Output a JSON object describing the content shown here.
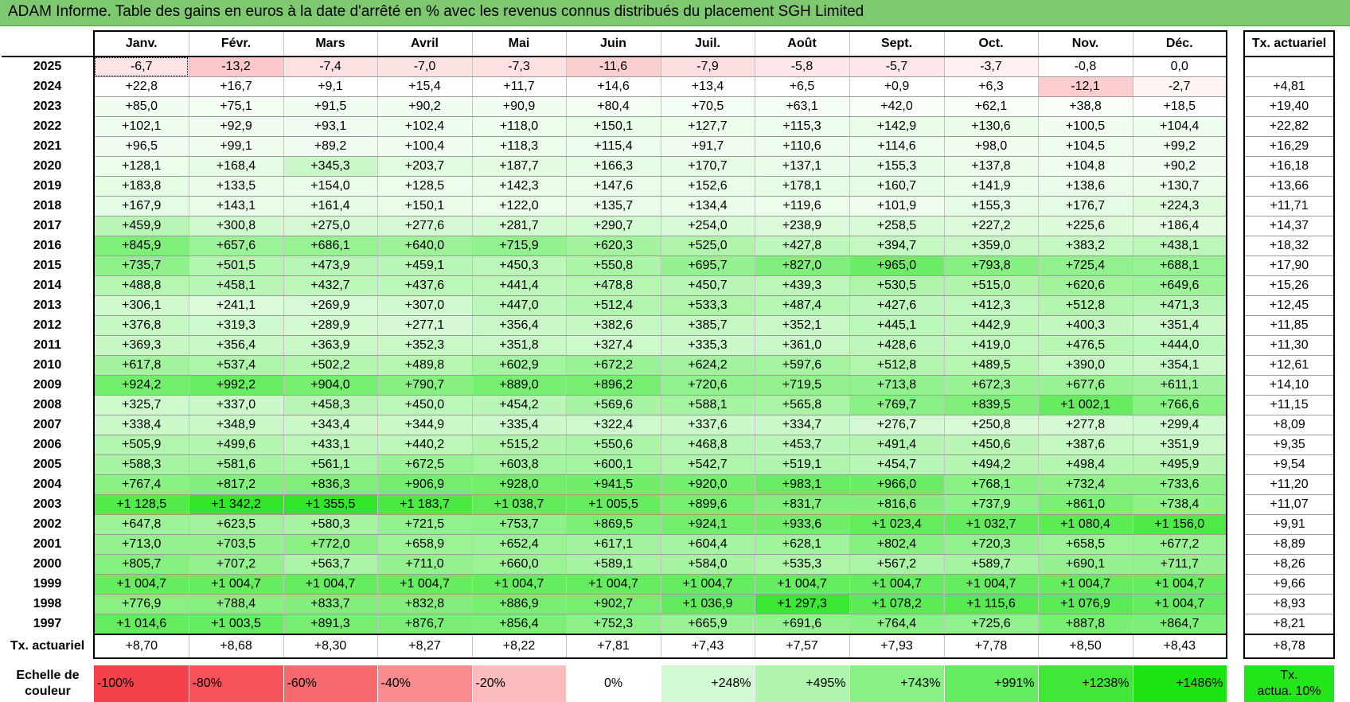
{
  "title": "ADAM Informe. Table des gains en euros à la date d'arrêté en % avec les revenus connus distribués du placement SGH Limited",
  "months": [
    "Janv.",
    "Févr.",
    "Mars",
    "Avril",
    "Mai",
    "Juin",
    "Juil.",
    "Août",
    "Sept.",
    "Oct.",
    "Nov.",
    "Déc."
  ],
  "rate_header": "Tx. actuariel",
  "rows": [
    {
      "year": "2025",
      "values": [
        "-6,7",
        "-13,2",
        "-7,4",
        "-7,0",
        "-7,3",
        "-11,6",
        "-7,9",
        "-5,8",
        "-5,7",
        "-3,7",
        "-0,8",
        "0,0"
      ],
      "rate": ""
    },
    {
      "year": "2024",
      "values": [
        "+22,8",
        "+16,7",
        "+9,1",
        "+15,4",
        "+11,7",
        "+14,6",
        "+13,4",
        "+6,5",
        "+0,9",
        "+6,3",
        "-12,1",
        "-2,7"
      ],
      "rate": "+4,81"
    },
    {
      "year": "2023",
      "values": [
        "+85,0",
        "+75,1",
        "+91,5",
        "+90,2",
        "+90,9",
        "+80,4",
        "+70,5",
        "+63,1",
        "+42,0",
        "+62,1",
        "+38,8",
        "+18,5"
      ],
      "rate": "+19,40"
    },
    {
      "year": "2022",
      "values": [
        "+102,1",
        "+92,9",
        "+93,1",
        "+102,4",
        "+118,0",
        "+150,1",
        "+127,7",
        "+115,3",
        "+142,9",
        "+130,6",
        "+100,5",
        "+104,4"
      ],
      "rate": "+22,82"
    },
    {
      "year": "2021",
      "values": [
        "+96,5",
        "+99,1",
        "+89,2",
        "+100,4",
        "+118,3",
        "+115,4",
        "+91,7",
        "+110,6",
        "+114,6",
        "+98,0",
        "+104,5",
        "+99,2"
      ],
      "rate": "+16,29"
    },
    {
      "year": "2020",
      "values": [
        "+128,1",
        "+168,4",
        "+345,3",
        "+203,7",
        "+187,7",
        "+166,3",
        "+170,7",
        "+137,1",
        "+155,3",
        "+137,8",
        "+104,8",
        "+90,2"
      ],
      "rate": "+16,18"
    },
    {
      "year": "2019",
      "values": [
        "+183,8",
        "+133,5",
        "+154,0",
        "+128,5",
        "+142,3",
        "+147,6",
        "+152,6",
        "+178,1",
        "+160,7",
        "+141,9",
        "+138,6",
        "+130,7"
      ],
      "rate": "+13,66"
    },
    {
      "year": "2018",
      "values": [
        "+167,9",
        "+143,1",
        "+161,4",
        "+150,1",
        "+122,0",
        "+135,7",
        "+134,4",
        "+119,6",
        "+101,9",
        "+155,3",
        "+176,7",
        "+224,3"
      ],
      "rate": "+11,71"
    },
    {
      "year": "2017",
      "values": [
        "+459,9",
        "+300,8",
        "+275,0",
        "+277,6",
        "+281,7",
        "+290,7",
        "+254,0",
        "+238,9",
        "+258,5",
        "+227,2",
        "+225,6",
        "+186,4"
      ],
      "rate": "+14,37"
    },
    {
      "year": "2016",
      "values": [
        "+845,9",
        "+657,6",
        "+686,1",
        "+640,0",
        "+715,9",
        "+620,3",
        "+525,0",
        "+427,8",
        "+394,7",
        "+359,0",
        "+383,2",
        "+438,1"
      ],
      "rate": "+18,32"
    },
    {
      "year": "2015",
      "values": [
        "+735,7",
        "+501,5",
        "+473,9",
        "+459,1",
        "+450,3",
        "+550,8",
        "+695,7",
        "+827,0",
        "+965,0",
        "+793,8",
        "+725,4",
        "+688,1"
      ],
      "rate": "+17,90"
    },
    {
      "year": "2014",
      "values": [
        "+488,8",
        "+458,1",
        "+432,7",
        "+437,6",
        "+441,4",
        "+478,8",
        "+450,7",
        "+439,3",
        "+530,5",
        "+515,0",
        "+620,6",
        "+649,6"
      ],
      "rate": "+15,26"
    },
    {
      "year": "2013",
      "values": [
        "+306,1",
        "+241,1",
        "+269,9",
        "+307,0",
        "+447,0",
        "+512,4",
        "+533,3",
        "+487,4",
        "+427,6",
        "+412,3",
        "+512,8",
        "+471,3"
      ],
      "rate": "+12,45"
    },
    {
      "year": "2012",
      "values": [
        "+376,8",
        "+319,3",
        "+289,9",
        "+277,1",
        "+356,4",
        "+382,6",
        "+385,7",
        "+352,1",
        "+445,1",
        "+442,9",
        "+400,3",
        "+351,4"
      ],
      "rate": "+11,85"
    },
    {
      "year": "2011",
      "values": [
        "+369,3",
        "+356,4",
        "+363,9",
        "+352,3",
        "+351,8",
        "+327,4",
        "+335,3",
        "+361,0",
        "+428,6",
        "+419,0",
        "+476,5",
        "+444,0"
      ],
      "rate": "+11,30"
    },
    {
      "year": "2010",
      "values": [
        "+617,8",
        "+537,4",
        "+502,2",
        "+489,8",
        "+602,9",
        "+672,2",
        "+624,2",
        "+597,6",
        "+512,8",
        "+489,5",
        "+390,0",
        "+354,1"
      ],
      "rate": "+12,61"
    },
    {
      "year": "2009",
      "values": [
        "+924,2",
        "+992,2",
        "+904,0",
        "+790,7",
        "+889,0",
        "+896,2",
        "+720,6",
        "+719,5",
        "+713,8",
        "+672,3",
        "+677,6",
        "+611,1"
      ],
      "rate": "+14,10"
    },
    {
      "year": "2008",
      "values": [
        "+325,7",
        "+337,0",
        "+458,3",
        "+450,0",
        "+454,2",
        "+569,6",
        "+588,1",
        "+565,8",
        "+769,7",
        "+839,5",
        "+1 002,1",
        "+766,6"
      ],
      "rate": "+11,15"
    },
    {
      "year": "2007",
      "values": [
        "+338,4",
        "+348,9",
        "+343,4",
        "+344,9",
        "+335,4",
        "+322,4",
        "+337,6",
        "+334,7",
        "+276,7",
        "+250,8",
        "+277,8",
        "+299,4"
      ],
      "rate": "+8,09"
    },
    {
      "year": "2006",
      "values": [
        "+505,9",
        "+499,6",
        "+433,1",
        "+440,2",
        "+515,2",
        "+550,6",
        "+468,8",
        "+453,7",
        "+491,4",
        "+450,6",
        "+387,6",
        "+351,9"
      ],
      "rate": "+9,35"
    },
    {
      "year": "2005",
      "values": [
        "+588,3",
        "+581,6",
        "+561,1",
        "+672,5",
        "+603,8",
        "+600,1",
        "+542,7",
        "+519,1",
        "+454,7",
        "+494,2",
        "+498,4",
        "+495,9"
      ],
      "rate": "+9,54"
    },
    {
      "year": "2004",
      "values": [
        "+767,4",
        "+817,2",
        "+836,3",
        "+906,9",
        "+928,0",
        "+941,5",
        "+920,0",
        "+983,1",
        "+966,0",
        "+768,1",
        "+732,4",
        "+733,6"
      ],
      "rate": "+11,20"
    },
    {
      "year": "2003",
      "values": [
        "+1 128,5",
        "+1 342,2",
        "+1 355,5",
        "+1 183,7",
        "+1 038,7",
        "+1 005,5",
        "+899,6",
        "+831,7",
        "+816,6",
        "+737,9",
        "+861,0",
        "+738,4"
      ],
      "rate": "+11,07"
    },
    {
      "year": "2002",
      "values": [
        "+647,8",
        "+623,5",
        "+580,3",
        "+721,5",
        "+753,7",
        "+869,5",
        "+924,1",
        "+933,6",
        "+1 023,4",
        "+1 032,7",
        "+1 080,4",
        "+1 156,0"
      ],
      "rate": "+9,91"
    },
    {
      "year": "2001",
      "values": [
        "+713,0",
        "+703,5",
        "+772,0",
        "+658,9",
        "+652,4",
        "+617,1",
        "+604,4",
        "+628,1",
        "+802,4",
        "+720,3",
        "+658,5",
        "+677,2"
      ],
      "rate": "+8,89"
    },
    {
      "year": "2000",
      "values": [
        "+805,7",
        "+707,2",
        "+563,7",
        "+711,0",
        "+660,0",
        "+589,1",
        "+584,0",
        "+535,3",
        "+567,2",
        "+589,7",
        "+690,1",
        "+711,7"
      ],
      "rate": "+8,26"
    },
    {
      "year": "1999",
      "values": [
        "+1 004,7",
        "+1 004,7",
        "+1 004,7",
        "+1 004,7",
        "+1 004,7",
        "+1 004,7",
        "+1 004,7",
        "+1 004,7",
        "+1 004,7",
        "+1 004,7",
        "+1 004,7",
        "+1 004,7"
      ],
      "rate": "+9,66"
    },
    {
      "year": "1998",
      "values": [
        "+776,9",
        "+788,4",
        "+833,7",
        "+832,8",
        "+886,9",
        "+902,7",
        "+1 036,9",
        "+1 297,3",
        "+1 078,2",
        "+1 115,6",
        "+1 076,9",
        "+1 004,7"
      ],
      "rate": "+8,93"
    },
    {
      "year": "1997",
      "values": [
        "+1 014,6",
        "+1 003,5",
        "+891,3",
        "+876,7",
        "+856,4",
        "+752,3",
        "+665,9",
        "+691,6",
        "+764,4",
        "+725,6",
        "+887,8",
        "+864,7"
      ],
      "rate": "+8,21"
    }
  ],
  "footer": {
    "label": "Tx. actuariel",
    "values": [
      "+8,70",
      "+8,68",
      "+8,30",
      "+8,27",
      "+8,22",
      "+7,81",
      "+7,43",
      "+7,57",
      "+7,93",
      "+7,78",
      "+8,50",
      "+8,43"
    ],
    "rate": "+8,78"
  },
  "scale": {
    "label_line1": "Echelle de",
    "label_line2": "couleur",
    "steps": [
      {
        "text": "-100%",
        "color": "#f4424a",
        "align": "left"
      },
      {
        "text": "-80%",
        "color": "#f55259",
        "align": "left"
      },
      {
        "text": "-60%",
        "color": "#f76a70",
        "align": "left"
      },
      {
        "text": "-40%",
        "color": "#f98a8e",
        "align": "left"
      },
      {
        "text": "-20%",
        "color": "#fbbcbe",
        "align": "left"
      },
      {
        "text": "0%",
        "color": "#ffffff",
        "align": "center"
      },
      {
        "text": "+248%",
        "color": "#d3f9d3",
        "align": "right"
      },
      {
        "text": "+495%",
        "color": "#aff5ad",
        "align": "right"
      },
      {
        "text": "+743%",
        "color": "#89f086",
        "align": "right"
      },
      {
        "text": "+991%",
        "color": "#64eb5f",
        "align": "right"
      },
      {
        "text": "+1238%",
        "color": "#40e739",
        "align": "right"
      },
      {
        "text": "+1486%",
        "color": "#1de313",
        "align": "right"
      }
    ],
    "legend_line1": "Tx.",
    "legend_line2": "actua. 10%",
    "legend_color": "#22e51a"
  },
  "colors": {
    "title_bg": "#7ec870",
    "positive_max": "#1de313",
    "negative_max": "#f4424a"
  }
}
